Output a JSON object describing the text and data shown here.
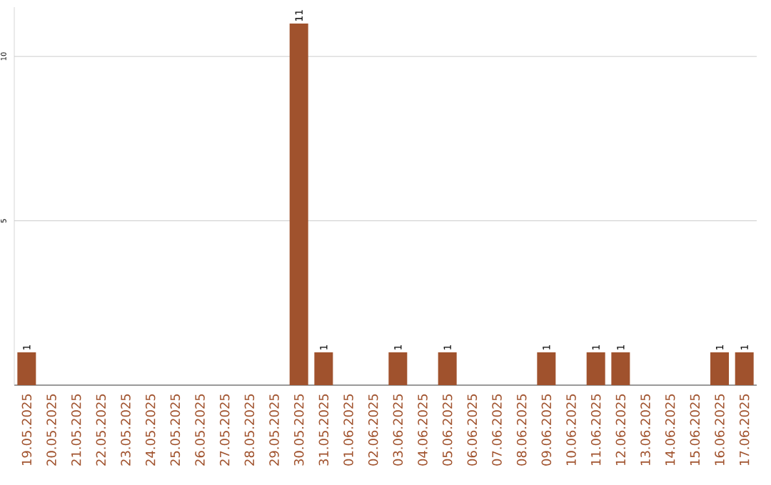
{
  "chart_data": {
    "type": "bar",
    "categories": [
      "19.05.2025",
      "20.05.2025",
      "21.05.2025",
      "22.05.2025",
      "23.05.2025",
      "24.05.2025",
      "25.05.2025",
      "26.05.2025",
      "27.05.2025",
      "28.05.2025",
      "29.05.2025",
      "30.05.2025",
      "31.05.2025",
      "01.06.2025",
      "02.06.2025",
      "03.06.2025",
      "04.06.2025",
      "05.06.2025",
      "06.06.2025",
      "07.06.2025",
      "08.06.2025",
      "09.06.2025",
      "10.06.2025",
      "11.06.2025",
      "12.06.2025",
      "13.06.2025",
      "14.06.2025",
      "15.06.2025",
      "16.06.2025",
      "17.06.2025"
    ],
    "values": [
      1,
      0,
      0,
      0,
      0,
      0,
      0,
      0,
      0,
      0,
      0,
      11,
      1,
      0,
      0,
      1,
      0,
      1,
      0,
      0,
      0,
      1,
      0,
      1,
      1,
      0,
      0,
      0,
      1,
      1
    ],
    "value_labels": [
      "1",
      null,
      null,
      null,
      null,
      null,
      null,
      null,
      null,
      null,
      null,
      "11",
      "1",
      null,
      null,
      "1",
      null,
      "1",
      null,
      null,
      null,
      "1",
      null,
      "1",
      "1",
      null,
      null,
      null,
      "1",
      "1"
    ],
    "color": "#a0522d",
    "ylim": [
      0,
      11.5
    ],
    "yticks": [
      5,
      10
    ],
    "grid": "y"
  }
}
